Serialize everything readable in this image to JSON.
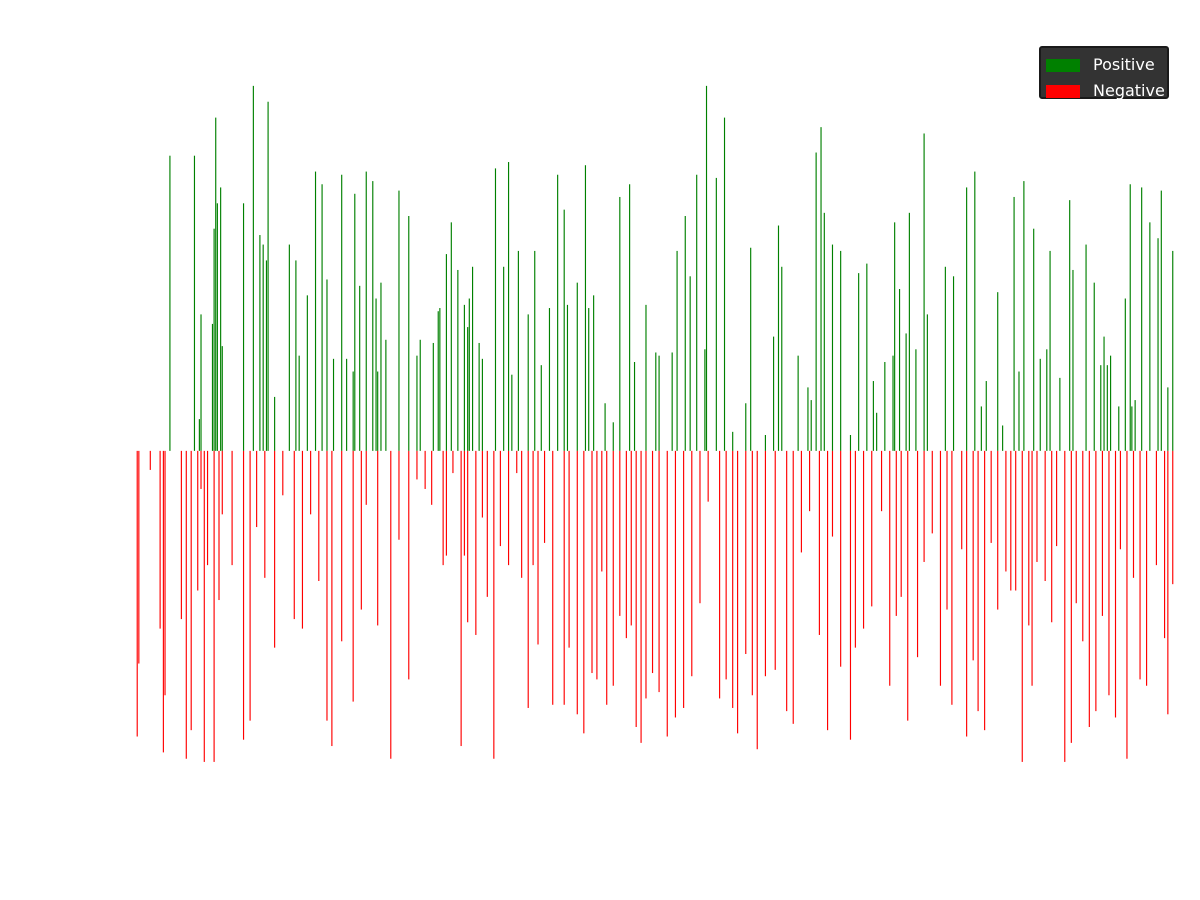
{
  "chart_data": {
    "type": "bar",
    "title": "",
    "xlabel": "",
    "ylabel": "",
    "axes_visible": false,
    "grid": false,
    "legend_placement": "top-right",
    "ylim": [
      -1.1,
      1.2
    ],
    "x_count": 640,
    "series": [
      {
        "name": "Positive",
        "color": "#008000",
        "sign": "positive",
        "bars": [
          [
            21,
            0.93
          ],
          [
            36,
            0.93
          ],
          [
            39,
            0.1
          ],
          [
            40,
            0.43
          ],
          [
            47,
            0.4
          ],
          [
            48,
            0.7
          ],
          [
            49,
            1.05
          ],
          [
            50,
            0.78
          ],
          [
            52,
            0.83
          ],
          [
            53,
            0.33
          ],
          [
            66,
            0.78
          ],
          [
            72,
            1.15
          ],
          [
            76,
            0.68
          ],
          [
            78,
            0.65
          ],
          [
            80,
            0.6
          ],
          [
            81,
            1.1
          ],
          [
            85,
            0.17
          ],
          [
            94,
            0.65
          ],
          [
            98,
            0.6
          ],
          [
            100,
            0.3
          ],
          [
            105,
            0.49
          ],
          [
            110,
            0.88
          ],
          [
            114,
            0.84
          ],
          [
            117,
            0.54
          ],
          [
            121,
            0.29
          ],
          [
            126,
            0.87
          ],
          [
            129,
            0.29
          ],
          [
            133,
            0.25
          ],
          [
            134,
            0.81
          ],
          [
            137,
            0.52
          ],
          [
            141,
            0.88
          ],
          [
            145,
            0.85
          ],
          [
            147,
            0.48
          ],
          [
            148,
            0.25
          ],
          [
            150,
            0.53
          ],
          [
            153,
            0.35
          ],
          [
            161,
            0.82
          ],
          [
            167,
            0.74
          ],
          [
            172,
            0.3
          ],
          [
            174,
            0.35
          ],
          [
            182,
            0.34
          ],
          [
            185,
            0.44
          ],
          [
            186,
            0.45
          ],
          [
            190,
            0.62
          ],
          [
            193,
            0.72
          ],
          [
            197,
            0.57
          ],
          [
            201,
            0.46
          ],
          [
            203,
            0.39
          ],
          [
            204,
            0.48
          ],
          [
            206,
            0.58
          ],
          [
            210,
            0.34
          ],
          [
            212,
            0.29
          ],
          [
            220,
            0.89
          ],
          [
            225,
            0.58
          ],
          [
            228,
            0.91
          ],
          [
            230,
            0.24
          ],
          [
            234,
            0.63
          ],
          [
            240,
            0.43
          ],
          [
            244,
            0.63
          ],
          [
            248,
            0.27
          ],
          [
            253,
            0.45
          ],
          [
            258,
            0.87
          ],
          [
            262,
            0.76
          ],
          [
            264,
            0.46
          ],
          [
            270,
            0.53
          ],
          [
            275,
            0.9
          ],
          [
            277,
            0.45
          ],
          [
            280,
            0.49
          ],
          [
            287,
            0.15
          ],
          [
            292,
            0.09
          ],
          [
            296,
            0.8
          ],
          [
            302,
            0.84
          ],
          [
            305,
            0.28
          ],
          [
            312,
            0.46
          ],
          [
            318,
            0.31
          ],
          [
            320,
            0.3
          ],
          [
            328,
            0.31
          ],
          [
            331,
            0.63
          ],
          [
            336,
            0.74
          ],
          [
            339,
            0.55
          ],
          [
            343,
            0.87
          ],
          [
            348,
            0.32
          ],
          [
            349,
            1.15
          ],
          [
            355,
            0.86
          ],
          [
            360,
            1.05
          ],
          [
            365,
            0.06
          ],
          [
            373,
            0.15
          ],
          [
            376,
            0.64
          ],
          [
            385,
            0.05
          ],
          [
            390,
            0.36
          ],
          [
            393,
            0.71
          ],
          [
            395,
            0.58
          ],
          [
            405,
            0.3
          ],
          [
            411,
            0.2
          ],
          [
            413,
            0.16
          ],
          [
            416,
            0.94
          ],
          [
            419,
            1.02
          ],
          [
            421,
            0.75
          ],
          [
            426,
            0.65
          ],
          [
            431,
            0.63
          ],
          [
            437,
            0.05
          ],
          [
            442,
            0.56
          ],
          [
            447,
            0.59
          ],
          [
            451,
            0.22
          ],
          [
            453,
            0.12
          ],
          [
            458,
            0.28
          ],
          [
            463,
            0.3
          ],
          [
            464,
            0.72
          ],
          [
            467,
            0.51
          ],
          [
            471,
            0.37
          ],
          [
            473,
            0.75
          ],
          [
            477,
            0.32
          ],
          [
            482,
            1.0
          ],
          [
            484,
            0.43
          ],
          [
            495,
            0.58
          ],
          [
            500,
            0.55
          ],
          [
            508,
            0.83
          ],
          [
            513,
            0.88
          ],
          [
            517,
            0.14
          ],
          [
            520,
            0.22
          ],
          [
            527,
            0.5
          ],
          [
            530,
            0.08
          ],
          [
            537,
            0.8
          ],
          [
            540,
            0.25
          ],
          [
            543,
            0.85
          ],
          [
            549,
            0.7
          ],
          [
            553,
            0.29
          ],
          [
            557,
            0.32
          ],
          [
            559,
            0.63
          ],
          [
            565,
            0.23
          ],
          [
            571,
            0.79
          ],
          [
            573,
            0.57
          ],
          [
            581,
            0.65
          ],
          [
            586,
            0.53
          ],
          [
            590,
            0.27
          ],
          [
            592,
            0.36
          ],
          [
            594,
            0.27
          ],
          [
            596,
            0.3
          ],
          [
            601,
            0.14
          ],
          [
            605,
            0.48
          ],
          [
            608,
            0.84
          ],
          [
            609,
            0.14
          ],
          [
            611,
            0.16
          ],
          [
            615,
            0.83
          ],
          [
            620,
            0.72
          ],
          [
            625,
            0.67
          ],
          [
            627,
            0.82
          ],
          [
            631,
            0.2
          ],
          [
            634,
            0.63
          ]
        ]
      },
      {
        "name": "Negative",
        "color": "#ff0000",
        "sign": "negative",
        "bars": [
          [
            1,
            -0.9
          ],
          [
            2,
            -0.67
          ],
          [
            9,
            -0.06
          ],
          [
            15,
            -0.56
          ],
          [
            17,
            -0.95
          ],
          [
            18,
            -0.77
          ],
          [
            28,
            -0.53
          ],
          [
            31,
            -0.97
          ],
          [
            34,
            -0.88
          ],
          [
            38,
            -0.44
          ],
          [
            40,
            -0.12
          ],
          [
            42,
            -0.98
          ],
          [
            44,
            -0.36
          ],
          [
            48,
            -0.98
          ],
          [
            51,
            -0.47
          ],
          [
            53,
            -0.2
          ],
          [
            59,
            -0.36
          ],
          [
            66,
            -0.91
          ],
          [
            70,
            -0.85
          ],
          [
            74,
            -0.24
          ],
          [
            79,
            -0.4
          ],
          [
            85,
            -0.62
          ],
          [
            90,
            -0.14
          ],
          [
            97,
            -0.53
          ],
          [
            102,
            -0.56
          ],
          [
            107,
            -0.2
          ],
          [
            112,
            -0.41
          ],
          [
            117,
            -0.85
          ],
          [
            120,
            -0.93
          ],
          [
            126,
            -0.6
          ],
          [
            133,
            -0.79
          ],
          [
            138,
            -0.5
          ],
          [
            141,
            -0.17
          ],
          [
            148,
            -0.55
          ],
          [
            156,
            -0.97
          ],
          [
            161,
            -0.28
          ],
          [
            167,
            -0.72
          ],
          [
            172,
            -0.09
          ],
          [
            177,
            -0.12
          ],
          [
            181,
            -0.17
          ],
          [
            188,
            -0.36
          ],
          [
            190,
            -0.33
          ],
          [
            194,
            -0.07
          ],
          [
            199,
            -0.93
          ],
          [
            201,
            -0.33
          ],
          [
            203,
            -0.54
          ],
          [
            208,
            -0.58
          ],
          [
            212,
            -0.21
          ],
          [
            215,
            -0.46
          ],
          [
            219,
            -0.97
          ],
          [
            223,
            -0.3
          ],
          [
            228,
            -0.36
          ],
          [
            233,
            -0.07
          ],
          [
            236,
            -0.4
          ],
          [
            240,
            -0.81
          ],
          [
            243,
            -0.36
          ],
          [
            246,
            -0.61
          ],
          [
            250,
            -0.29
          ],
          [
            255,
            -0.8
          ],
          [
            262,
            -0.8
          ],
          [
            265,
            -0.62
          ],
          [
            270,
            -0.83
          ],
          [
            274,
            -0.89
          ],
          [
            279,
            -0.7
          ],
          [
            282,
            -0.72
          ],
          [
            285,
            -0.38
          ],
          [
            288,
            -0.8
          ],
          [
            292,
            -0.74
          ],
          [
            296,
            -0.52
          ],
          [
            300,
            -0.59
          ],
          [
            303,
            -0.55
          ],
          [
            306,
            -0.87
          ],
          [
            309,
            -0.92
          ],
          [
            312,
            -0.78
          ],
          [
            316,
            -0.7
          ],
          [
            320,
            -0.76
          ],
          [
            325,
            -0.9
          ],
          [
            330,
            -0.84
          ],
          [
            335,
            -0.81
          ],
          [
            340,
            -0.71
          ],
          [
            345,
            -0.48
          ],
          [
            350,
            -0.16
          ],
          [
            357,
            -0.78
          ],
          [
            361,
            -0.72
          ],
          [
            365,
            -0.81
          ],
          [
            368,
            -0.89
          ],
          [
            373,
            -0.64
          ],
          [
            377,
            -0.77
          ],
          [
            380,
            -0.94
          ],
          [
            385,
            -0.71
          ],
          [
            391,
            -0.69
          ],
          [
            398,
            -0.82
          ],
          [
            402,
            -0.86
          ],
          [
            407,
            -0.32
          ],
          [
            412,
            -0.19
          ],
          [
            418,
            -0.58
          ],
          [
            423,
            -0.88
          ],
          [
            426,
            -0.27
          ],
          [
            431,
            -0.68
          ],
          [
            437,
            -0.91
          ],
          [
            440,
            -0.62
          ],
          [
            445,
            -0.56
          ],
          [
            450,
            -0.49
          ],
          [
            456,
            -0.19
          ],
          [
            461,
            -0.74
          ],
          [
            465,
            -0.52
          ],
          [
            468,
            -0.46
          ],
          [
            472,
            -0.85
          ],
          [
            478,
            -0.65
          ],
          [
            482,
            -0.35
          ],
          [
            487,
            -0.26
          ],
          [
            492,
            -0.74
          ],
          [
            496,
            -0.5
          ],
          [
            499,
            -0.8
          ],
          [
            505,
            -0.31
          ],
          [
            508,
            -0.9
          ],
          [
            512,
            -0.66
          ],
          [
            515,
            -0.82
          ],
          [
            519,
            -0.88
          ],
          [
            523,
            -0.29
          ],
          [
            527,
            -0.5
          ],
          [
            532,
            -0.38
          ],
          [
            535,
            -0.44
          ],
          [
            538,
            -0.44
          ],
          [
            542,
            -0.98
          ],
          [
            546,
            -0.55
          ],
          [
            548,
            -0.74
          ],
          [
            551,
            -0.35
          ],
          [
            556,
            -0.41
          ],
          [
            560,
            -0.54
          ],
          [
            563,
            -0.3
          ],
          [
            568,
            -0.98
          ],
          [
            572,
            -0.92
          ],
          [
            575,
            -0.48
          ],
          [
            579,
            -0.6
          ],
          [
            583,
            -0.87
          ],
          [
            587,
            -0.82
          ],
          [
            591,
            -0.52
          ],
          [
            595,
            -0.77
          ],
          [
            599,
            -0.84
          ],
          [
            602,
            -0.31
          ],
          [
            606,
            -0.97
          ],
          [
            610,
            -0.4
          ],
          [
            614,
            -0.72
          ],
          [
            618,
            -0.74
          ],
          [
            624,
            -0.36
          ],
          [
            629,
            -0.59
          ],
          [
            631,
            -0.83
          ],
          [
            634,
            -0.42
          ]
        ]
      }
    ]
  }
}
